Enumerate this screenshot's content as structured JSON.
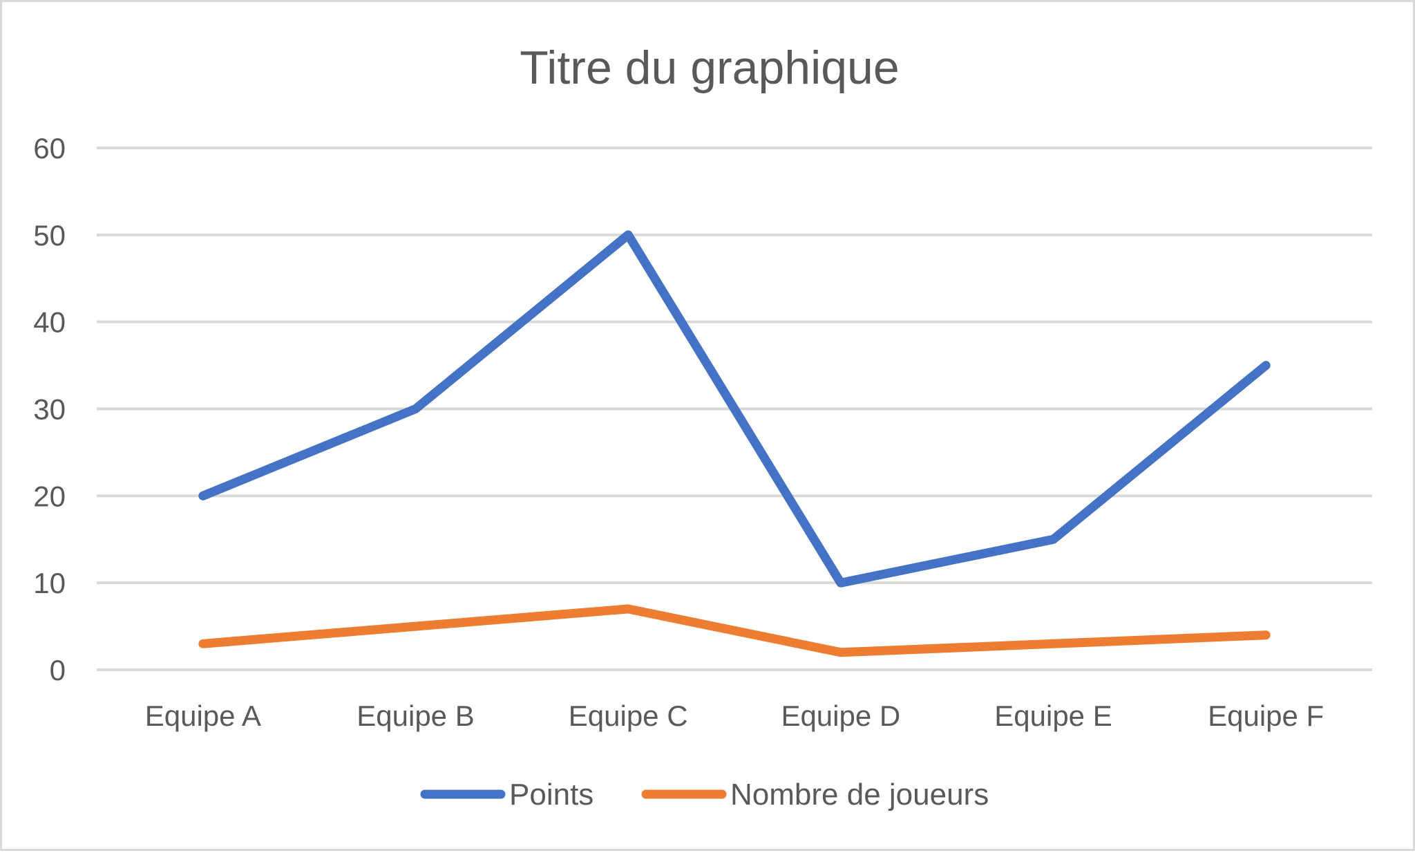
{
  "chart_data": {
    "type": "line",
    "title": "Titre du graphique",
    "xlabel": "",
    "ylabel": "",
    "categories": [
      "Equipe A",
      "Equipe B",
      "Equipe C",
      "Equipe D",
      "Equipe E",
      "Equipe F"
    ],
    "series": [
      {
        "name": "Points",
        "color": "#4472c4",
        "values": [
          20,
          30,
          50,
          10,
          15,
          35
        ]
      },
      {
        "name": "Nombre de joueurs",
        "color": "#ed7d31",
        "values": [
          3,
          5,
          7,
          2,
          3,
          4
        ]
      }
    ],
    "ylim": [
      0,
      60
    ],
    "yticks": [
      "0",
      "10",
      "20",
      "30",
      "40",
      "50",
      "60"
    ],
    "grid": true,
    "legend_position": "bottom"
  }
}
